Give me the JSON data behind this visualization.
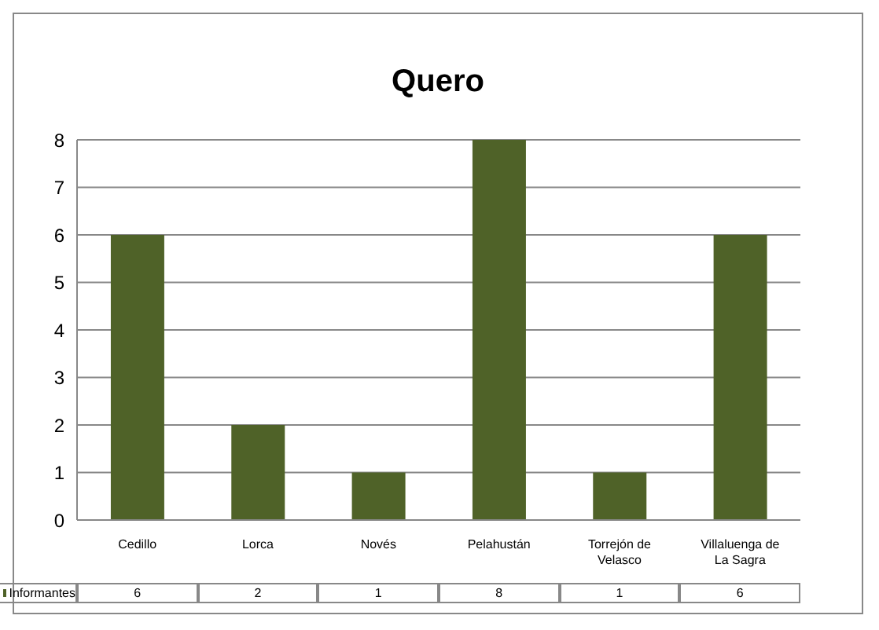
{
  "chart_data": {
    "type": "bar",
    "title": "Quero",
    "categories": [
      "Cedillo",
      "Lorca",
      "Novés",
      "Pelahustán",
      "Torrejón de Velasco",
      "Villaluenga de La Sagra"
    ],
    "series": [
      {
        "name": "Informantes",
        "color": "#4f6228",
        "values": [
          6,
          2,
          1,
          8,
          1,
          6
        ]
      }
    ],
    "ylim": [
      0,
      8
    ],
    "yticks": [
      0,
      1,
      2,
      3,
      4,
      5,
      6,
      7,
      8
    ],
    "grid": "y",
    "legend": "bottom",
    "data_labels": true
  }
}
